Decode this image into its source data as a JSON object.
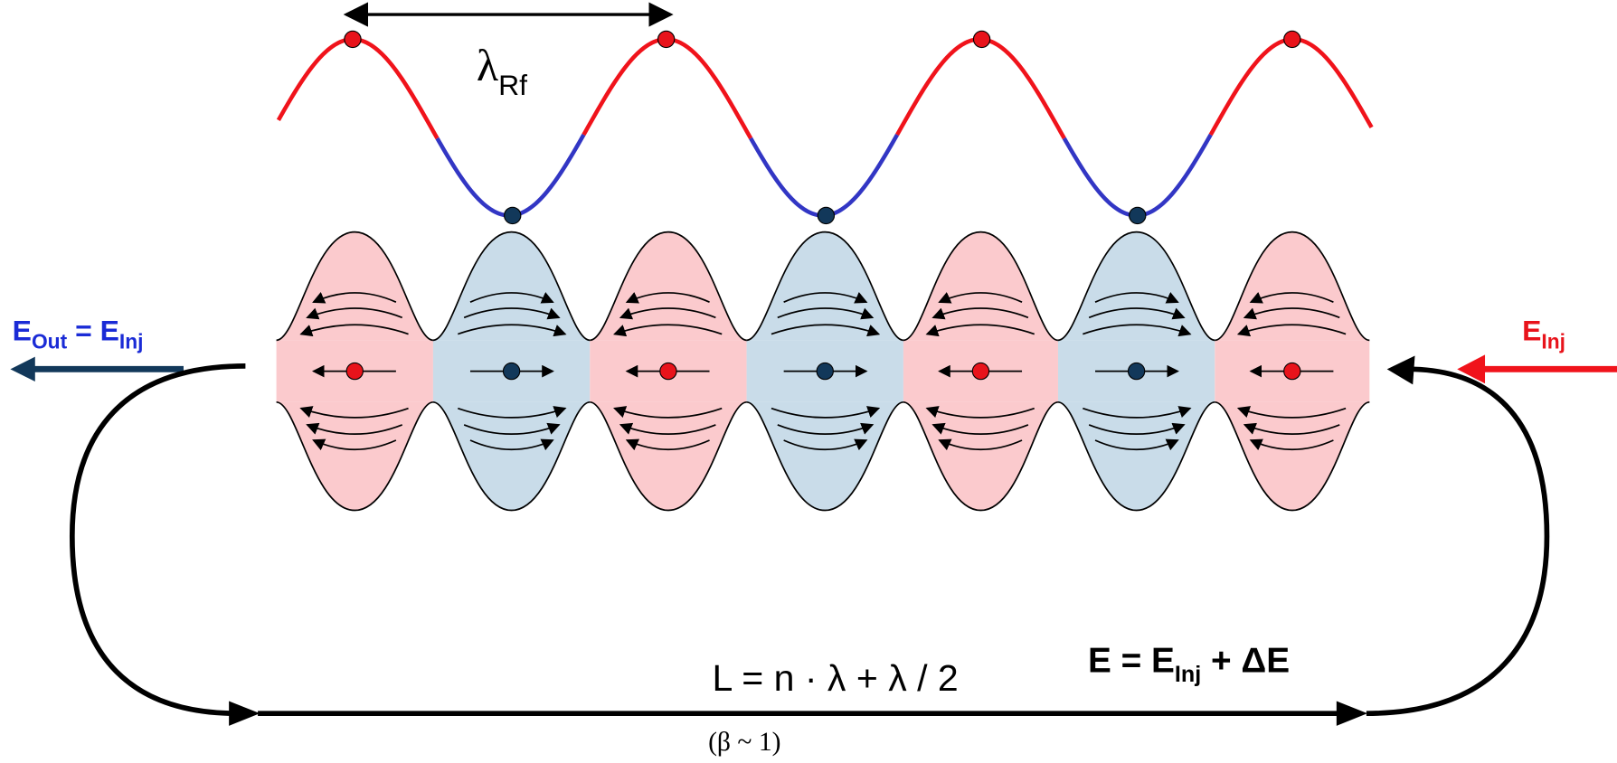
{
  "labels": {
    "rf_wavelength": {
      "symbol": "λ",
      "subscript": "Rf"
    },
    "output_energy": {
      "left": "E",
      "left_subscript": "Out",
      "middle": " = E",
      "right_subscript": "Inj"
    },
    "injection_energy": {
      "symbol": "E",
      "subscript": "Inj"
    },
    "loop_length": "L = n · λ + λ / 2",
    "energy_gain": {
      "left": "E = E",
      "subscript": "Inj",
      "right": " + ΔE"
    },
    "beta": "(β ~ 1)"
  }
}
